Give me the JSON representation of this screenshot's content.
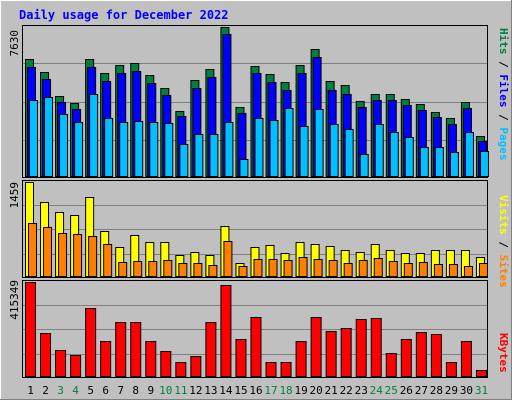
{
  "colors": {
    "background": "#c0c0c0",
    "title": "#0000ff",
    "hits": "#008040",
    "files": "#0000ff",
    "pages": "#00c0ff",
    "visits": "#ffff00",
    "sites": "#ff8000",
    "kbytes": "#ff0000",
    "weekend_day": "#008040",
    "weekday": "#000000"
  },
  "chart_data": [
    {
      "type": "bar",
      "title": "Daily usage for December 2022",
      "categories": [
        "1",
        "2",
        "3",
        "4",
        "5",
        "6",
        "7",
        "8",
        "9",
        "10",
        "11",
        "12",
        "13",
        "14",
        "15",
        "16",
        "17",
        "18",
        "19",
        "20",
        "21",
        "22",
        "23",
        "24",
        "25",
        "26",
        "27",
        "28",
        "29",
        "30",
        "31"
      ],
      "weekend_days": [
        "3",
        "4",
        "10",
        "11",
        "17",
        "18",
        "24",
        "25",
        "31"
      ],
      "ymax_label": "7630",
      "ylim": [
        0,
        7630
      ],
      "right_label_parts": [
        "Pages",
        "/",
        "Files",
        "/",
        "Hits"
      ],
      "series": [
        {
          "name": "Hits",
          "values": [
            6000,
            5350,
            4100,
            3750,
            6000,
            5300,
            5700,
            5800,
            5150,
            4500,
            3350,
            4900,
            5500,
            7630,
            3550,
            5650,
            5200,
            4800,
            5700,
            6500,
            4850,
            4650,
            3850,
            4200,
            4200,
            3950,
            3700,
            3300,
            2950,
            3800,
            2050
          ]
        },
        {
          "name": "Files",
          "values": [
            5600,
            4950,
            3800,
            3450,
            5600,
            4850,
            5300,
            5400,
            4750,
            4150,
            3050,
            4500,
            5050,
            7250,
            3250,
            5250,
            4800,
            4400,
            5250,
            6100,
            4400,
            4200,
            3550,
            3900,
            3900,
            3650,
            3400,
            3000,
            2650,
            3500,
            1800
          ]
        },
        {
          "name": "Pages",
          "values": [
            3900,
            4050,
            3150,
            2750,
            4200,
            2950,
            2750,
            2800,
            2750,
            2700,
            1650,
            2150,
            2150,
            2750,
            850,
            2950,
            2850,
            3500,
            2550,
            3450,
            2650,
            2400,
            1150,
            2650,
            2250,
            2000,
            1500,
            1500,
            1250,
            2250,
            1300
          ]
        }
      ]
    },
    {
      "type": "bar",
      "ymax_label": "1459",
      "ylim": [
        0,
        1459
      ],
      "right_label_parts": [
        "Sites",
        "/",
        "Visits"
      ],
      "series": [
        {
          "name": "Visits",
          "values": [
            1459,
            1150,
            1000,
            950,
            1230,
            700,
            450,
            630,
            520,
            520,
            320,
            370,
            320,
            780,
            200,
            450,
            480,
            350,
            520,
            500,
            460,
            400,
            370,
            500,
            400,
            350,
            350,
            400,
            400,
            400,
            300
          ]
        },
        {
          "name": "Sites",
          "values": [
            830,
            760,
            670,
            650,
            620,
            500,
            210,
            230,
            240,
            250,
            200,
            200,
            170,
            540,
            160,
            270,
            270,
            250,
            290,
            270,
            250,
            200,
            250,
            280,
            230,
            200,
            220,
            190,
            190,
            150,
            200
          ]
        }
      ]
    },
    {
      "type": "bar",
      "ymax_label": "415349",
      "ylim": [
        0,
        415349
      ],
      "right_label_parts": [
        "KBytes"
      ],
      "series": [
        {
          "name": "KBytes",
          "values": [
            415349,
            190000,
            115000,
            95000,
            300000,
            155000,
            240000,
            240000,
            155000,
            110000,
            60000,
            90000,
            240000,
            400000,
            165000,
            260000,
            60000,
            60000,
            155000,
            260000,
            200000,
            210000,
            250000,
            255000,
            100000,
            165000,
            195000,
            185000,
            60000,
            155000,
            25000
          ]
        }
      ]
    }
  ]
}
